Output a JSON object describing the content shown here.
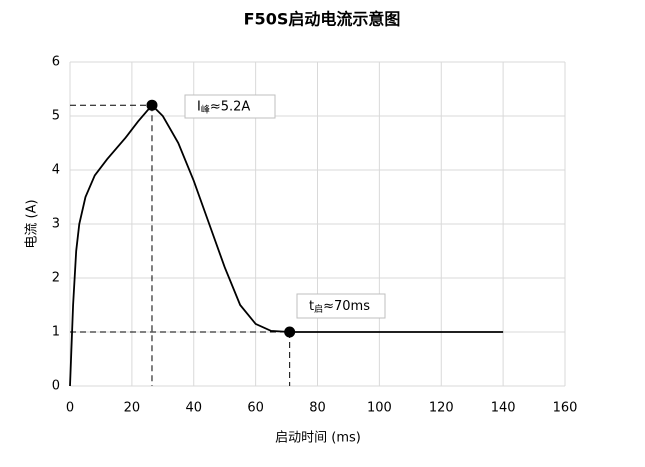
{
  "chart_data": {
    "type": "line",
    "title": "F50S启动电流示意图",
    "x_label": "启动时间 (ms)",
    "y_label": "电流 (A)",
    "x": [
      0,
      1,
      2,
      3,
      5,
      8,
      12,
      18,
      22,
      26.5,
      30,
      35,
      40,
      45,
      50,
      55,
      60,
      65,
      71,
      80,
      100,
      140
    ],
    "series": [
      {
        "color": "#000000",
        "values": [
          0,
          1.5,
          2.5,
          3.0,
          3.5,
          3.9,
          4.2,
          4.6,
          4.9,
          5.2,
          5.0,
          4.5,
          3.8,
          3.0,
          2.2,
          1.5,
          1.15,
          1.02,
          1.0,
          1.0,
          1.0,
          1.0
        ]
      }
    ],
    "xlim": [
      0,
      160
    ],
    "xticks": [
      0,
      20,
      40,
      60,
      80,
      100,
      120,
      140,
      160
    ],
    "ylim": [
      0,
      6
    ],
    "yticks": [
      0,
      1,
      2,
      3,
      4,
      5,
      6
    ],
    "grid": true,
    "annotations": [
      {
        "x": 26.5,
        "y": 5.2,
        "main": "I",
        "sub": "峰",
        "rest": "≈5.2A"
      },
      {
        "x": 71,
        "y": 1.0,
        "main": "t",
        "sub": "启",
        "rest": "≈70ms"
      }
    ]
  }
}
